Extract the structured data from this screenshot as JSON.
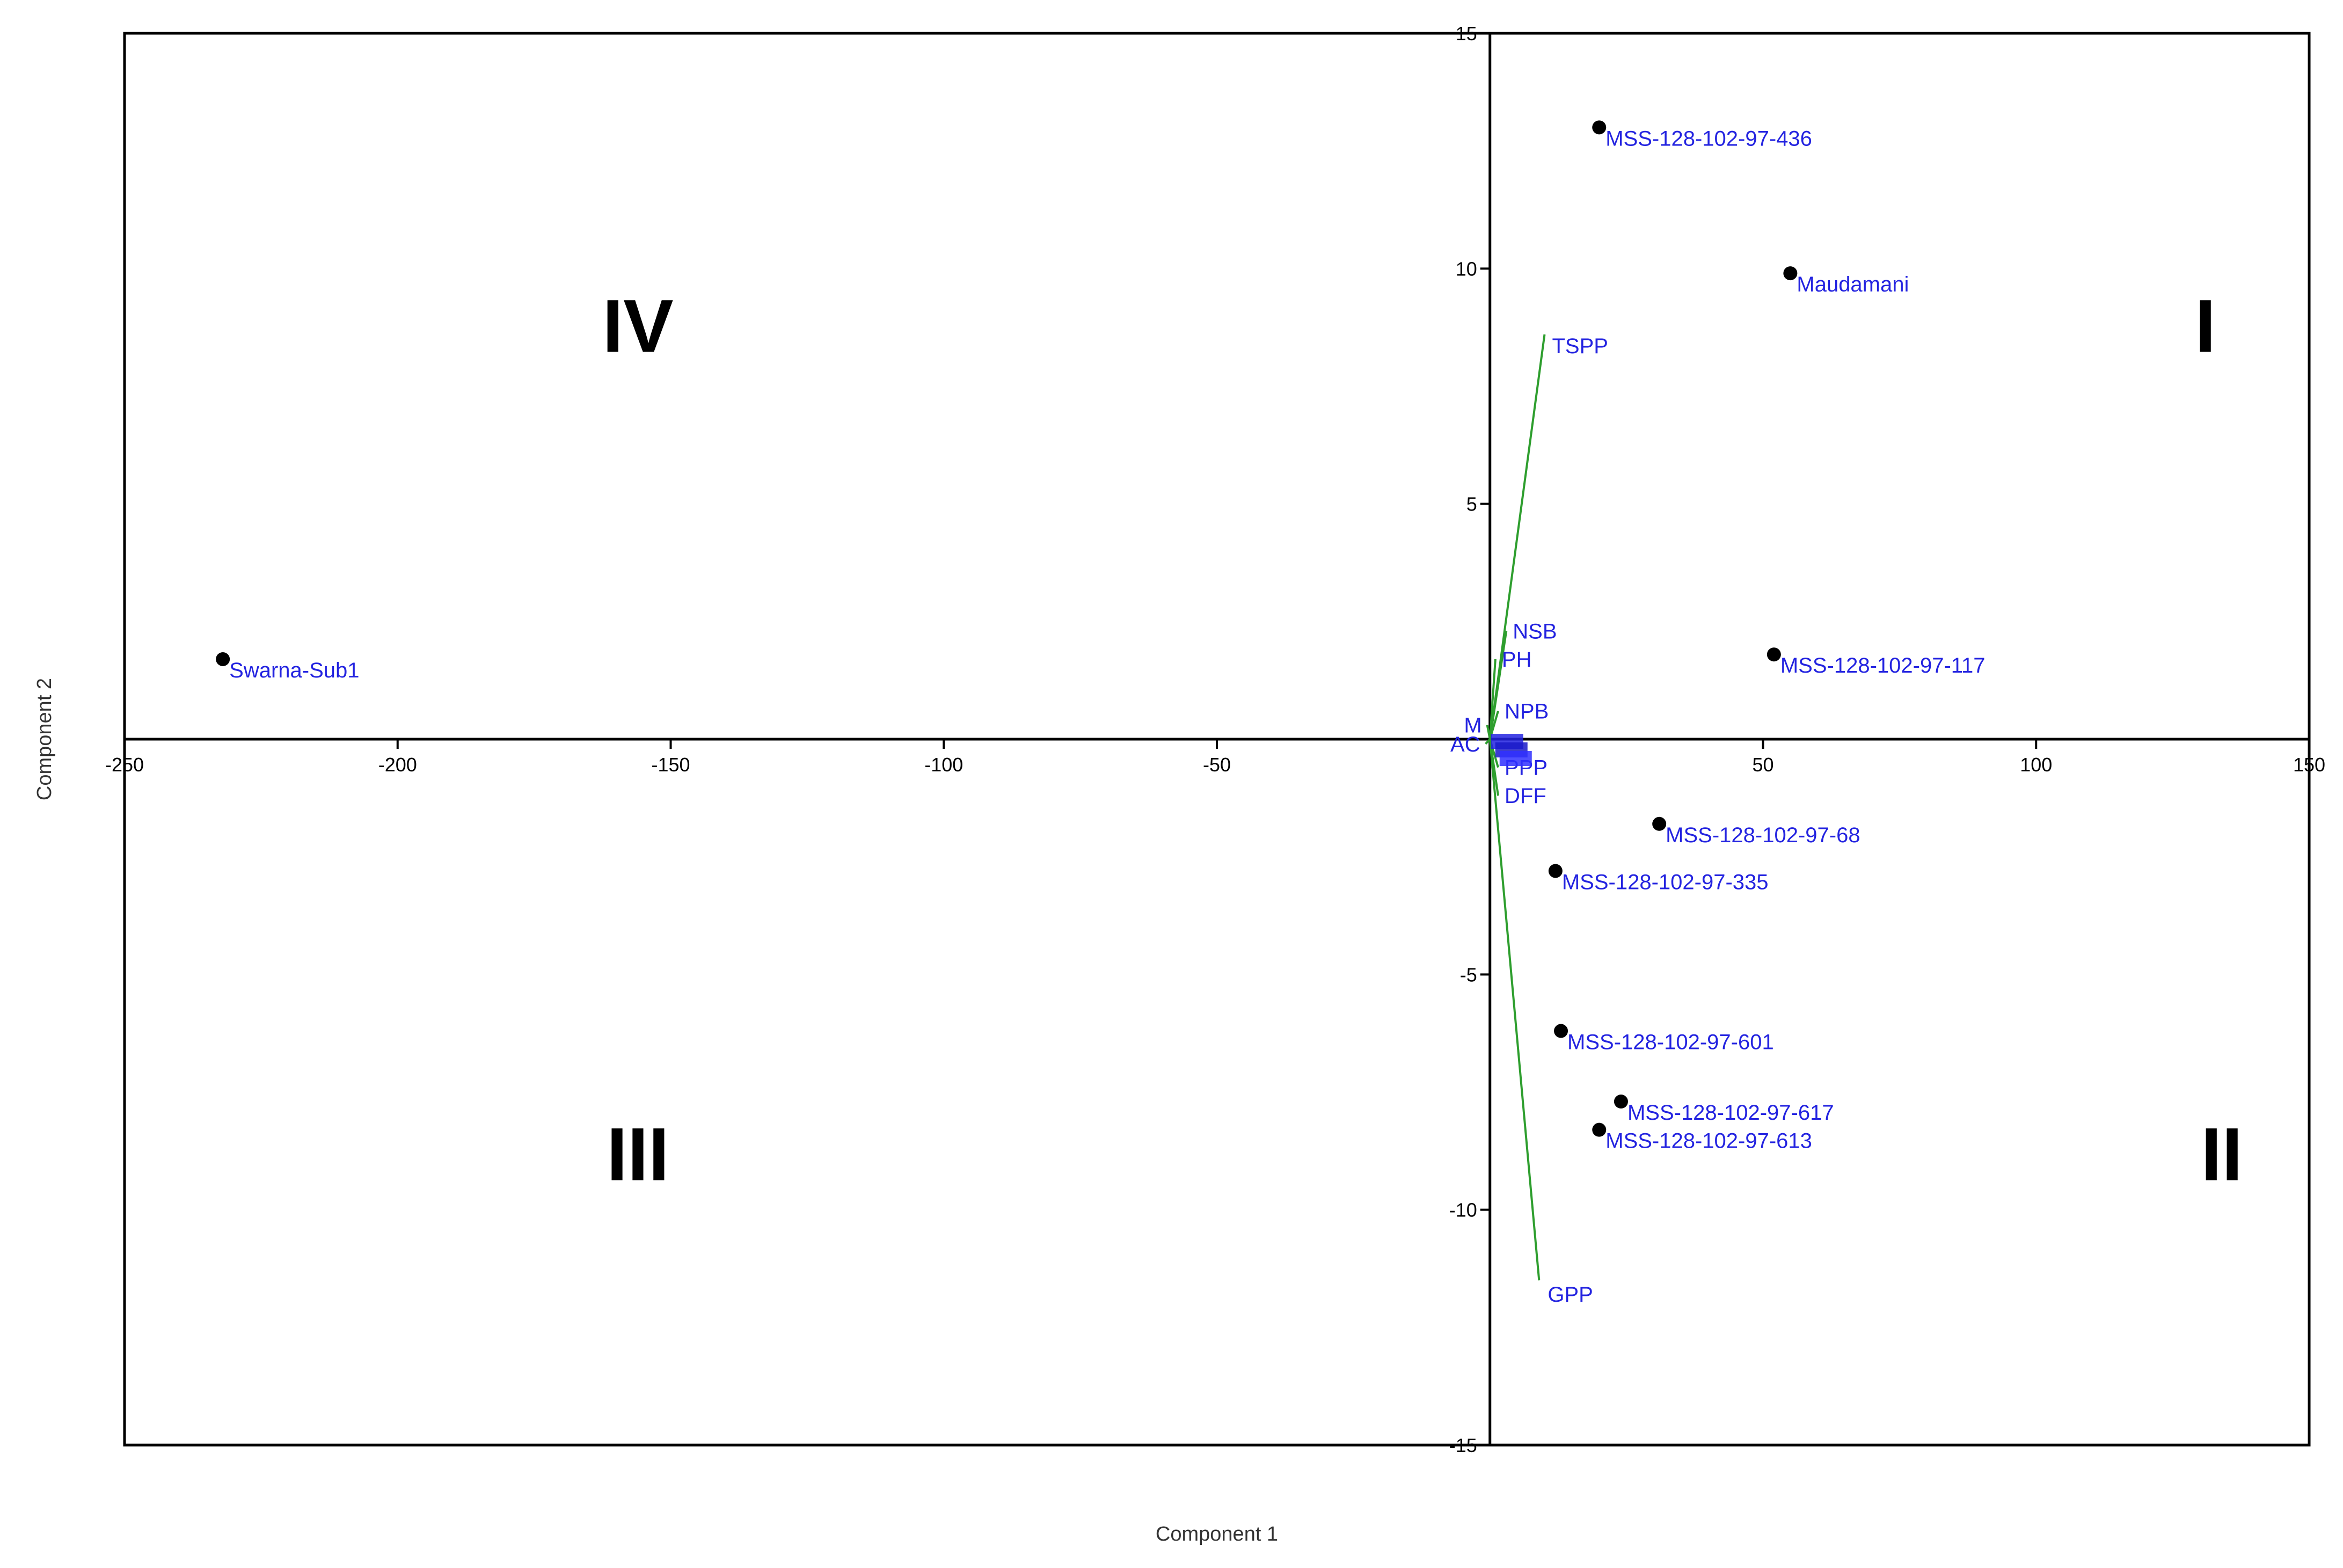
{
  "chart_data": {
    "type": "scatter",
    "subtype": "biplot",
    "xlabel": "Component 1",
    "ylabel": "Component 2",
    "xlim": [
      -250,
      150
    ],
    "ylim": [
      -15,
      15
    ],
    "xticks": [
      -250,
      -200,
      -150,
      -100,
      -50,
      50,
      100,
      150
    ],
    "yticks": [
      15,
      10,
      5,
      -5,
      -10,
      -15
    ],
    "grid": false,
    "colors": {
      "points": "#000000",
      "labels": "#2323e0",
      "vectors": "#2e9e2e",
      "axes": "#000000"
    },
    "points": [
      {
        "label": "MSS-128-102-97-436",
        "x": 20,
        "y": 13.0
      },
      {
        "label": "Maudamani",
        "x": 55,
        "y": 9.9
      },
      {
        "label": "Swarna-Sub1",
        "x": -232,
        "y": 1.7
      },
      {
        "label": "MSS-128-102-97-117",
        "x": 52,
        "y": 1.8
      },
      {
        "label": "MSS-128-102-97-68",
        "x": 31,
        "y": -1.8
      },
      {
        "label": "MSS-128-102-97-335",
        "x": 12,
        "y": -2.8
      },
      {
        "label": "MSS-128-102-97-601",
        "x": 13,
        "y": -6.2
      },
      {
        "label": "MSS-128-102-97-617",
        "x": 24,
        "y": -7.7
      },
      {
        "label": "MSS-128-102-97-613",
        "x": 20,
        "y": -8.3
      }
    ],
    "vectors": [
      {
        "label": "TSPP",
        "x": 10,
        "y": 8.6
      },
      {
        "label": "GPP",
        "x": 9,
        "y": -11.5
      },
      {
        "label": "NSB",
        "x": 3,
        "y": 2.3
      },
      {
        "label": "PH",
        "x": 1,
        "y": 1.7
      },
      {
        "label": "NPB",
        "x": 1.5,
        "y": 0.6
      },
      {
        "label": "M",
        "x": -0.5,
        "y": 0.3
      },
      {
        "label": "AC",
        "x": -0.8,
        "y": -0.1
      },
      {
        "label": "PPP",
        "x": 1.5,
        "y": -0.6
      },
      {
        "label": "DFF",
        "x": 1.5,
        "y": -1.2
      }
    ],
    "quadrants": [
      {
        "label": "I",
        "x": 131,
        "y": 8.8
      },
      {
        "label": "II",
        "x": 134,
        "y": -8.8
      },
      {
        "label": "III",
        "x": -156,
        "y": -8.8
      },
      {
        "label": "IV",
        "x": -156,
        "y": 8.8
      }
    ]
  }
}
